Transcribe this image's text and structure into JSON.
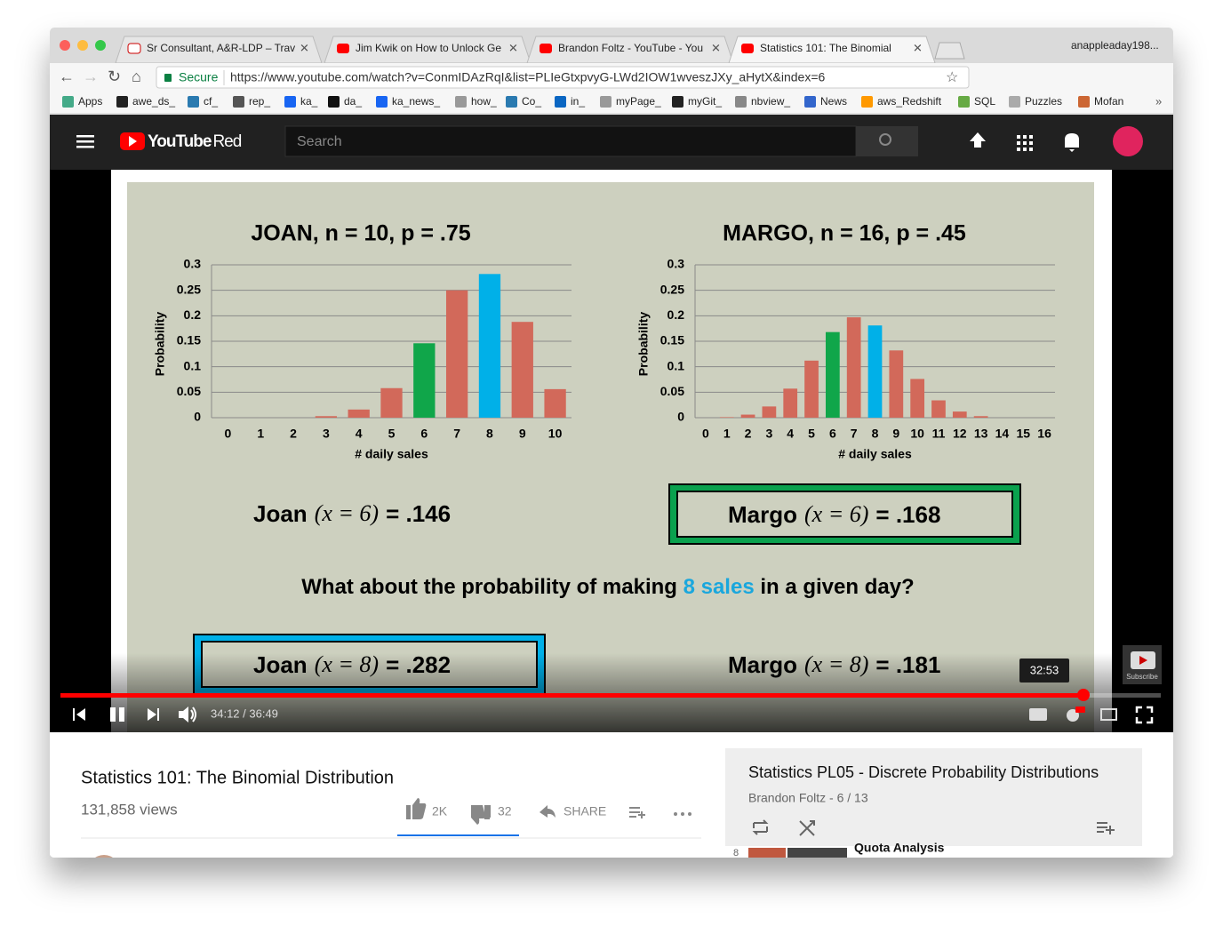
{
  "browser": {
    "tabs": [
      "Sr Consultant, A&R-LDP – Trav",
      "Jim Kwik on How to Unlock Ge",
      "Brandon Foltz - YouTube - You",
      "Statistics 101: The Binomial"
    ],
    "profile": "anappleaday198...",
    "secure": "Secure",
    "url": "https://www.youtube.com/watch?v=ConmIDAzRqI&list=PLIeGtxpvyG-LWd2IOW1wveszJXy_aHytX&index=6",
    "bookmarks": [
      "Apps",
      "awe_ds_",
      "cf_",
      "rep_",
      "ka_",
      "da_",
      "ka_news_",
      "how_",
      "Co_",
      "in_",
      "myPage_",
      "myGit_",
      "nbview_",
      "News",
      "aws_Redshift",
      "SQL",
      "Puzzles",
      "Mofan"
    ]
  },
  "youtube": {
    "logo": "YouTube",
    "logo_suffix": "Red",
    "search": "Search"
  },
  "chart_data": [
    {
      "type": "bar",
      "title": "JOAN, n = 10, p = .75",
      "x_label": "# daily sales",
      "y_label": "Probability",
      "categories": [
        "0",
        "1",
        "2",
        "3",
        "4",
        "5",
        "6",
        "7",
        "8",
        "9",
        "10"
      ],
      "values": [
        0,
        0,
        0,
        0.003,
        0.016,
        0.058,
        0.146,
        0.25,
        0.282,
        0.188,
        0.056
      ],
      "colors": [
        "#d2695a",
        "#d2695a",
        "#d2695a",
        "#d2695a",
        "#d2695a",
        "#d2695a",
        "#10a64a",
        "#d2695a",
        "#00b0e8",
        "#d2695a",
        "#d2695a"
      ],
      "ylim": [
        0,
        0.3
      ],
      "yticks": [
        0,
        0.05,
        0.1,
        0.15,
        0.2,
        0.25,
        0.3
      ],
      "grid": true
    },
    {
      "type": "bar",
      "title": "MARGO, n = 16, p = .45",
      "x_label": "# daily sales",
      "y_label": "Probability",
      "categories": [
        "0",
        "1",
        "2",
        "3",
        "4",
        "5",
        "6",
        "7",
        "8",
        "9",
        "10",
        "11",
        "12",
        "13",
        "14",
        "15",
        "16"
      ],
      "values": [
        0,
        0.001,
        0.006,
        0.022,
        0.057,
        0.112,
        0.168,
        0.197,
        0.181,
        0.132,
        0.076,
        0.034,
        0.012,
        0.003,
        0,
        0,
        0
      ],
      "colors": [
        "#d2695a",
        "#d2695a",
        "#d2695a",
        "#d2695a",
        "#d2695a",
        "#d2695a",
        "#10a64a",
        "#d2695a",
        "#00b0e8",
        "#d2695a",
        "#d2695a",
        "#d2695a",
        "#d2695a",
        "#d2695a",
        "#d2695a",
        "#d2695a",
        "#d2695a"
      ],
      "ylim": [
        0,
        0.3
      ],
      "yticks": [
        0,
        0.05,
        0.1,
        0.15,
        0.2,
        0.25,
        0.3
      ],
      "grid": true
    }
  ],
  "slide": {
    "formulas": [
      {
        "name": "Joan",
        "expr": "(x = 6)",
        "value": "= .146"
      },
      {
        "name": "Margo",
        "expr": "(x = 6)",
        "value": "= .168"
      },
      {
        "name": "Joan",
        "expr": "(x = 8)",
        "value": "= .282"
      },
      {
        "name": "Margo",
        "expr": "(x = 8)",
        "value": "= .181"
      }
    ],
    "question": [
      "What about the probability of making ",
      "8 sales",
      " in a given day?"
    ]
  },
  "player": {
    "time": "34:12 / 36:49",
    "tooltip": "32:53",
    "subscribe": "Subscribe"
  },
  "video_info": {
    "title": "Statistics 101: The Binomial Distribution",
    "views": "131,858 views",
    "likes": "2K",
    "dislikes": "32",
    "share": "SHARE"
  },
  "playlist": {
    "title": "Statistics PL05 - Discrete Probability Distributions",
    "meta": "Brandon Foltz - 6 / 13",
    "index": "8",
    "next_title": "Quota Analysis"
  }
}
